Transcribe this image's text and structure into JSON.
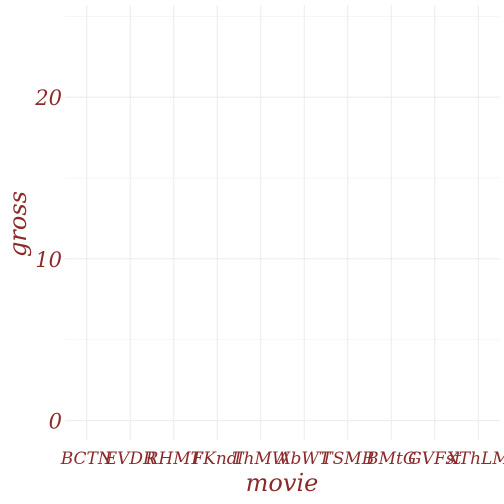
{
  "chart_data": {
    "type": "bar",
    "title": "",
    "xlabel": "movie",
    "ylabel": "gross",
    "categories": [
      "BCTN",
      "EVDR",
      "RHMT",
      "FKndl",
      "ThMW",
      "AbWT",
      "TSMB",
      "BMtG",
      "GVFst",
      "XThLM"
    ],
    "values": [
      0,
      0,
      0,
      0,
      0,
      0,
      0,
      0,
      0,
      0
    ],
    "ylim": [
      -1.2,
      25.7
    ],
    "yticks": [
      0,
      10,
      20
    ],
    "grid": true,
    "legend": "none",
    "colors": {
      "text": "#8b2a2a",
      "grid": "#ebebeb",
      "background": "#ffffff"
    }
  }
}
